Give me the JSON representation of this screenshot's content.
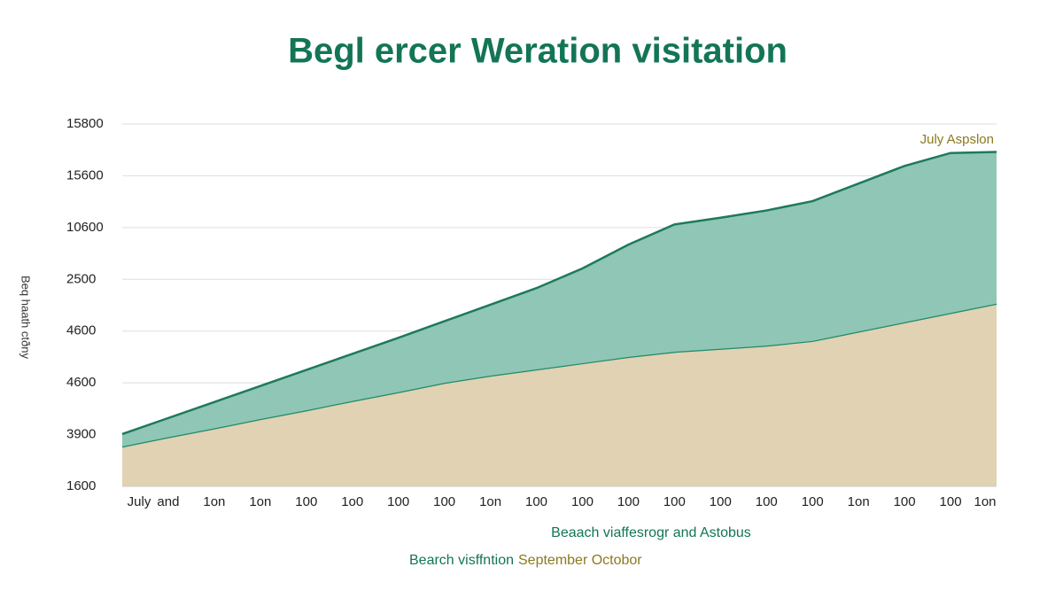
{
  "chart_data": {
    "type": "stacked_area",
    "title": "Begl ercer Weration visitation",
    "ylabel": "Beq haath ctðny",
    "annotation": "July Aspslon",
    "subtitle": "Beaach viaffesrogr and Astobus",
    "categories": [
      "July",
      "and",
      "1on",
      "1on",
      "100",
      "1o0",
      "100",
      "100",
      "1on",
      "100",
      "100",
      "100",
      "100",
      "100",
      "100",
      "100",
      "1on",
      "100",
      "100",
      "1on"
    ],
    "series": [
      {
        "name": "September Octobor",
        "color": "#e0d2b3",
        "line_color": "#1f8a68",
        "label_color": "#8a7a1e",
        "values": [
          0.77,
          0.95,
          1.12,
          1.3,
          1.47,
          1.65,
          1.82,
          2.0,
          2.14,
          2.26,
          2.38,
          2.5,
          2.6,
          2.66,
          2.72,
          2.81,
          2.99,
          3.17,
          3.35,
          3.53
        ]
      },
      {
        "name": "Bearch visffntion",
        "color": "#8fc6b5",
        "line_color": "#1d7a5c",
        "label_color": "#137556",
        "values": [
          0.24,
          0.37,
          0.51,
          0.64,
          0.78,
          0.91,
          1.05,
          1.19,
          1.37,
          1.57,
          1.83,
          2.17,
          2.46,
          2.53,
          2.61,
          2.7,
          2.86,
          3.02,
          3.09,
          2.93
        ]
      }
    ],
    "ylim": [
      0,
      7
    ],
    "yticks": [
      {
        "value": 0,
        "label": "1600"
      },
      {
        "value": 1,
        "label": "3900"
      },
      {
        "value": 2,
        "label": "4600"
      },
      {
        "value": 3,
        "label": "4600"
      },
      {
        "value": 4,
        "label": "2500"
      },
      {
        "value": 5,
        "label": "10600"
      },
      {
        "value": 6,
        "label": "15600"
      },
      {
        "value": 7,
        "label": "15800"
      }
    ],
    "grid": true
  }
}
